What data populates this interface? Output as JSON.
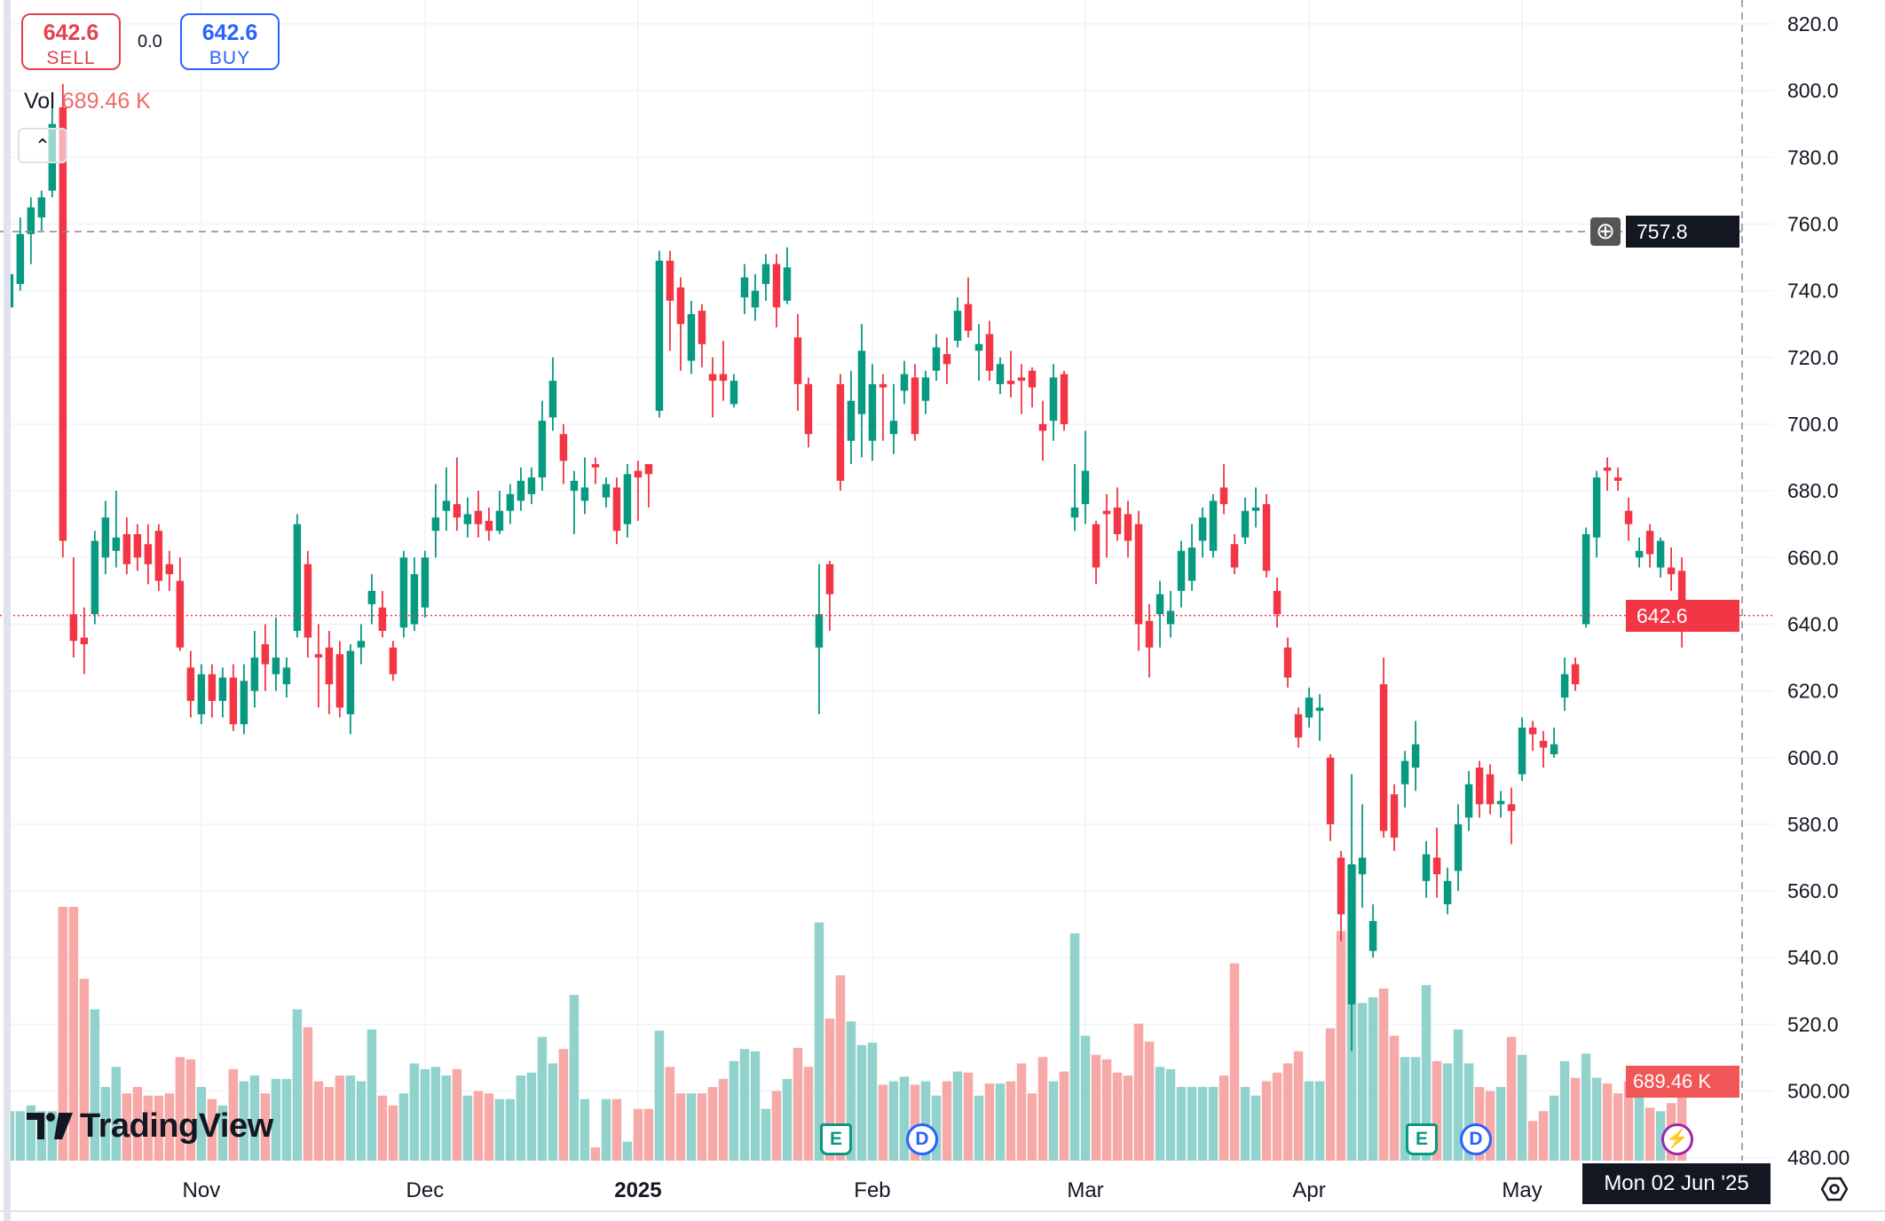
{
  "trade": {
    "sell_price": "642.6",
    "sell_label": "SELL",
    "spread": "0.0",
    "buy_price": "642.6",
    "buy_label": "BUY"
  },
  "volume_legend": {
    "label": "Vol",
    "value": "689.46 K"
  },
  "brand": "TradingView",
  "crosshair": {
    "price_label": "757.8",
    "date_label": "Mon 02 Jun '25"
  },
  "last_price_label": "642.6",
  "last_volume_label": "689.46 K",
  "events": [
    {
      "type": "E",
      "label": "E"
    },
    {
      "type": "D",
      "label": "D"
    },
    {
      "type": "E",
      "label": "E"
    },
    {
      "type": "D",
      "label": "D"
    }
  ],
  "colors": {
    "up": "#089981",
    "down": "#F23645",
    "up_vol": "#92D2CC",
    "down_vol": "#F7A9A7",
    "last_price": "#F23645",
    "grid": "#F0F3FA"
  },
  "chart_data": {
    "type": "candlestick",
    "title": "",
    "y_axis": {
      "ticks": [
        "820.0",
        "800.0",
        "780.0",
        "760.0",
        "740.0",
        "720.0",
        "700.0",
        "680.0",
        "660.0",
        "640.0",
        "620.0",
        "600.0",
        "580.0",
        "560.0",
        "540.0",
        "520.0",
        "500.00",
        "480.00"
      ],
      "range": [
        480,
        820
      ]
    },
    "x_axis": {
      "ticks": [
        {
          "label": "Nov",
          "index": 18,
          "bold": false
        },
        {
          "label": "Dec",
          "index": 39,
          "bold": false
        },
        {
          "label": "2025",
          "index": 59,
          "bold": true
        },
        {
          "label": "Feb",
          "index": 81,
          "bold": false
        },
        {
          "label": "Mar",
          "index": 101,
          "bold": false
        },
        {
          "label": "Apr",
          "index": 122,
          "bold": false
        },
        {
          "label": "May",
          "index": 142,
          "bold": false
        }
      ]
    },
    "ohlc": [
      [
        735,
        748,
        730,
        745
      ],
      [
        742,
        762,
        740,
        757
      ],
      [
        757,
        768,
        748,
        765
      ],
      [
        762,
        770,
        758,
        768
      ],
      [
        770,
        795,
        768,
        790
      ],
      [
        795,
        802,
        660,
        665
      ],
      [
        643,
        660,
        630,
        635
      ],
      [
        636,
        645,
        625,
        634
      ],
      [
        643,
        668,
        640,
        665
      ],
      [
        660,
        677,
        655,
        672
      ],
      [
        662,
        680,
        657,
        666
      ],
      [
        667,
        672,
        655,
        658
      ],
      [
        667,
        670,
        656,
        660
      ],
      [
        664,
        670,
        652,
        658
      ],
      [
        668,
        670,
        650,
        653
      ],
      [
        658,
        662,
        650,
        655
      ],
      [
        653,
        660,
        632,
        633
      ],
      [
        627,
        632,
        612,
        617
      ],
      [
        613,
        628,
        610,
        625
      ],
      [
        625,
        628,
        612,
        617
      ],
      [
        617,
        627,
        612,
        624
      ],
      [
        624,
        628,
        608,
        610
      ],
      [
        610,
        628,
        607,
        623
      ],
      [
        620,
        638,
        615,
        630
      ],
      [
        634,
        640,
        620,
        628
      ],
      [
        625,
        642,
        620,
        630
      ],
      [
        622,
        630,
        618,
        627
      ],
      [
        638,
        673,
        636,
        670
      ],
      [
        658,
        662,
        630,
        636
      ],
      [
        631,
        640,
        615,
        630
      ],
      [
        633,
        638,
        613,
        622
      ],
      [
        631,
        635,
        612,
        615
      ],
      [
        613,
        634,
        607,
        632
      ],
      [
        633,
        640,
        628,
        635
      ],
      [
        646,
        655,
        640,
        650
      ],
      [
        645,
        650,
        636,
        638
      ],
      [
        633,
        635,
        623,
        625
      ],
      [
        639,
        662,
        636,
        660
      ],
      [
        640,
        660,
        638,
        655
      ],
      [
        645,
        662,
        642,
        660
      ],
      [
        668,
        682,
        660,
        672
      ],
      [
        674,
        687,
        668,
        677
      ],
      [
        676,
        690,
        668,
        672
      ],
      [
        670,
        678,
        666,
        673
      ],
      [
        674,
        680,
        666,
        670
      ],
      [
        671,
        675,
        665,
        668
      ],
      [
        668,
        680,
        667,
        674
      ],
      [
        674,
        682,
        670,
        679
      ],
      [
        677,
        687,
        674,
        683
      ],
      [
        679,
        687,
        676,
        684
      ],
      [
        684,
        707,
        680,
        701
      ],
      [
        702,
        720,
        698,
        713
      ],
      [
        697,
        700,
        682,
        689
      ],
      [
        680,
        686,
        667,
        683
      ],
      [
        677,
        690,
        673,
        681
      ],
      [
        688,
        690,
        682,
        687
      ],
      [
        678,
        684,
        675,
        682
      ],
      [
        681,
        684,
        664,
        668
      ],
      [
        670,
        688,
        666,
        685
      ],
      [
        686,
        689,
        671,
        684
      ],
      [
        688,
        688,
        675,
        685
      ],
      [
        704,
        752,
        702,
        749
      ],
      [
        749,
        752,
        722,
        737
      ],
      [
        741,
        744,
        716,
        730
      ],
      [
        719,
        737,
        715,
        733
      ],
      [
        734,
        736,
        717,
        724
      ],
      [
        715,
        720,
        702,
        713
      ],
      [
        715,
        725,
        707,
        713
      ],
      [
        706,
        715,
        705,
        713
      ],
      [
        738,
        748,
        733,
        744
      ],
      [
        735,
        745,
        731,
        740
      ],
      [
        742,
        751,
        737,
        748
      ],
      [
        748,
        751,
        729,
        735
      ],
      [
        737,
        753,
        736,
        747
      ],
      [
        726,
        733,
        704,
        712
      ],
      [
        712,
        714,
        693,
        697
      ],
      [
        633,
        658,
        613,
        643
      ],
      [
        658,
        659,
        638,
        649
      ],
      [
        712,
        715,
        680,
        683
      ],
      [
        695,
        716,
        688,
        707
      ],
      [
        703,
        730,
        690,
        722
      ],
      [
        695,
        718,
        689,
        712
      ],
      [
        712,
        715,
        695,
        711
      ],
      [
        697,
        712,
        691,
        701
      ],
      [
        710,
        719,
        706,
        715
      ],
      [
        714,
        718,
        695,
        697
      ],
      [
        707,
        716,
        703,
        714
      ],
      [
        716,
        727,
        713,
        723
      ],
      [
        721,
        726,
        712,
        718
      ],
      [
        725,
        738,
        723,
        734
      ],
      [
        736,
        744,
        726,
        728
      ],
      [
        722,
        730,
        713,
        724
      ],
      [
        727,
        731,
        713,
        716
      ],
      [
        712,
        720,
        709,
        718
      ],
      [
        713,
        722,
        708,
        712
      ],
      [
        714,
        718,
        703,
        713
      ],
      [
        716,
        717,
        705,
        711
      ],
      [
        700,
        707,
        689,
        698
      ],
      [
        701,
        718,
        695,
        714
      ],
      [
        715,
        716,
        698,
        700
      ],
      [
        672,
        688,
        668,
        675
      ],
      [
        676,
        698,
        670,
        686
      ],
      [
        670,
        671,
        652,
        657
      ],
      [
        674,
        679,
        660,
        673
      ],
      [
        675,
        681,
        665,
        667
      ],
      [
        673,
        677,
        660,
        665
      ],
      [
        670,
        674,
        632,
        640
      ],
      [
        641,
        646,
        624,
        633
      ],
      [
        643,
        653,
        633,
        649
      ],
      [
        640,
        650,
        636,
        644
      ],
      [
        650,
        665,
        645,
        662
      ],
      [
        653,
        670,
        650,
        663
      ],
      [
        665,
        675,
        660,
        672
      ],
      [
        662,
        679,
        660,
        677
      ],
      [
        681,
        688,
        673,
        676
      ],
      [
        664,
        667,
        655,
        657
      ],
      [
        666,
        678,
        664,
        674
      ],
      [
        674,
        681,
        669,
        675
      ],
      [
        676,
        679,
        654,
        656
      ],
      [
        650,
        654,
        639,
        643
      ],
      [
        633,
        636,
        621,
        624
      ],
      [
        613,
        615,
        603,
        606
      ],
      [
        612,
        621,
        609,
        618
      ],
      [
        614,
        619,
        605,
        615
      ],
      [
        600,
        601,
        575,
        580
      ],
      [
        570,
        572,
        545,
        553
      ],
      [
        526,
        595,
        512,
        568
      ],
      [
        565,
        586,
        555,
        570
      ],
      [
        542,
        556,
        540,
        551
      ],
      [
        622,
        630,
        576,
        578
      ],
      [
        589,
        592,
        572,
        576
      ],
      [
        592,
        602,
        585,
        599
      ],
      [
        597,
        611,
        590,
        604
      ],
      [
        563,
        575,
        558,
        571
      ],
      [
        570,
        579,
        558,
        565
      ],
      [
        556,
        567,
        553,
        563
      ],
      [
        566,
        586,
        560,
        580
      ],
      [
        582,
        596,
        578,
        592
      ],
      [
        597,
        599,
        582,
        586
      ],
      [
        595,
        598,
        583,
        586
      ],
      [
        586,
        590,
        582,
        587
      ],
      [
        586,
        591,
        574,
        584
      ],
      [
        595,
        612,
        593,
        609
      ],
      [
        609,
        611,
        602,
        607
      ],
      [
        605,
        608,
        597,
        603
      ],
      [
        601,
        609,
        600,
        604
      ],
      [
        618,
        630,
        614,
        625
      ],
      [
        628,
        630,
        620,
        622
      ],
      [
        640,
        669,
        639,
        667
      ],
      [
        666,
        686,
        660,
        684
      ],
      [
        687,
        690,
        680,
        686
      ],
      [
        684,
        687,
        680,
        683
      ],
      [
        674,
        678,
        665,
        670
      ],
      [
        660,
        666,
        657,
        662
      ],
      [
        668,
        670,
        657,
        661
      ],
      [
        657,
        666,
        654,
        665
      ],
      [
        657,
        663,
        650,
        655
      ],
      [
        656,
        660,
        633,
        642.6
      ]
    ],
    "volume_k": [
      430,
      430,
      480,
      430,
      430,
      2205,
      2205,
      1580,
      1315,
      640,
      815,
      585,
      640,
      565,
      565,
      585,
      900,
      880,
      640,
      535,
      480,
      795,
      690,
      740,
      585,
      710,
      710,
      1315,
      1160,
      690,
      640,
      740,
      740,
      690,
      1140,
      565,
      480,
      585,
      845,
      795,
      815,
      740,
      795,
      565,
      605,
      585,
      535,
      535,
      740,
      765,
      1075,
      845,
      970,
      1440,
      535,
      115,
      535,
      535,
      165,
      450,
      450,
      1130,
      815,
      585,
      585,
      585,
      640,
      710,
      865,
      970,
      950,
      450,
      605,
      710,
      980,
      815,
      2070,
      1235,
      1610,
      1210,
      1005,
      1025,
      660,
      690,
      730,
      660,
      690,
      565,
      690,
      775,
      765,
      565,
      670,
      670,
      690,
      845,
      585,
      900,
      690,
      775,
      1975,
      1085,
      920,
      880,
      765,
      740,
      1190,
      1035,
      815,
      795,
      640,
      640,
      640,
      640,
      740,
      1715,
      640,
      565,
      690,
      765,
      845,
      950,
      690,
      690,
      1150,
      1995,
      2570,
      1370,
      1420,
      1495,
      1085,
      900,
      900,
      1525,
      865,
      845,
      1140,
      845,
      640,
      605,
      640,
      1075,
      920,
      345,
      430,
      565,
      865,
      720,
      930,
      720,
      670,
      585,
      690,
      555,
      460,
      430,
      500,
      690
    ],
    "last_price": 642.6,
    "crosshair_price": 757.8
  }
}
